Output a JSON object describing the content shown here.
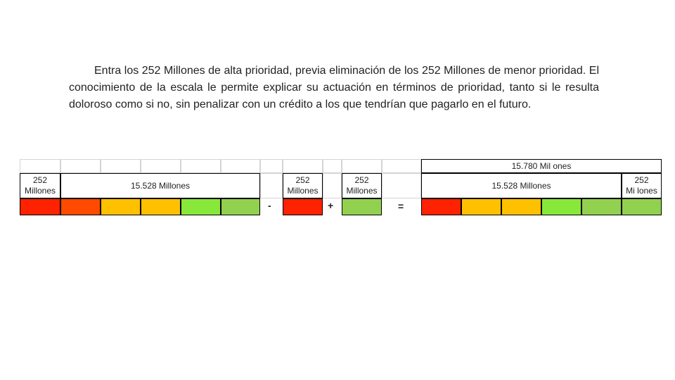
{
  "paragraph": "Entra los 252 Millones de alta prioridad, previa eliminación de los 252 Millones de menor prioridad. El conocimiento de la escala le permite explicar su actuación en términos de prioridad, tanto si le resulta doloroso como si no, sin penalizar con un crédito a los que tendrían que pagarlo en el futuro.",
  "group1": {
    "small_label": "252\nMillones",
    "big_label": "15.528 Millones"
  },
  "group2": {
    "label": "252\nMillones"
  },
  "group3": {
    "label": "252\nMillones"
  },
  "result": {
    "top_label": "15.780 Mil ones",
    "big_label": "15.528 Millones",
    "small_label": "252\nMi lones"
  },
  "operators": {
    "minus": "-",
    "plus": "+",
    "equals": "="
  },
  "colors": {
    "red": "#ff2200",
    "orange_red": "#ff4a00",
    "amber": "#ffc000",
    "green": "#92d050"
  }
}
